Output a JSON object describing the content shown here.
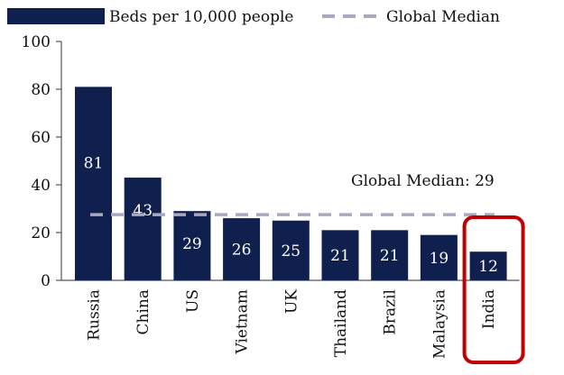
{
  "chart_data": {
    "type": "bar",
    "title": "",
    "xlabel": "",
    "ylabel": "",
    "ylim": [
      0,
      100
    ],
    "yticks": [
      0,
      20,
      40,
      60,
      80,
      100
    ],
    "categories": [
      "Russia",
      "China",
      "US",
      "Vietnam",
      "UK",
      "Thailand",
      "Brazil",
      "Malaysia",
      "India"
    ],
    "series": [
      {
        "name": "Beds per 10,000 people",
        "values": [
          81,
          43,
          29,
          26,
          25,
          21,
          21,
          19,
          12
        ]
      }
    ],
    "reference_line": {
      "name": "Global Median",
      "value": 29,
      "annotation": "Global Median: 29"
    },
    "highlight": {
      "category": "India",
      "color": "#c00000"
    },
    "legend": {
      "position": "top",
      "entries": [
        "Beds per 10,000 people",
        "Global Median"
      ]
    },
    "colors": {
      "bar": "#0f1f4e",
      "median_line": "#a9a9bd",
      "label_text": "#ffffff",
      "axis": "#555555"
    }
  }
}
